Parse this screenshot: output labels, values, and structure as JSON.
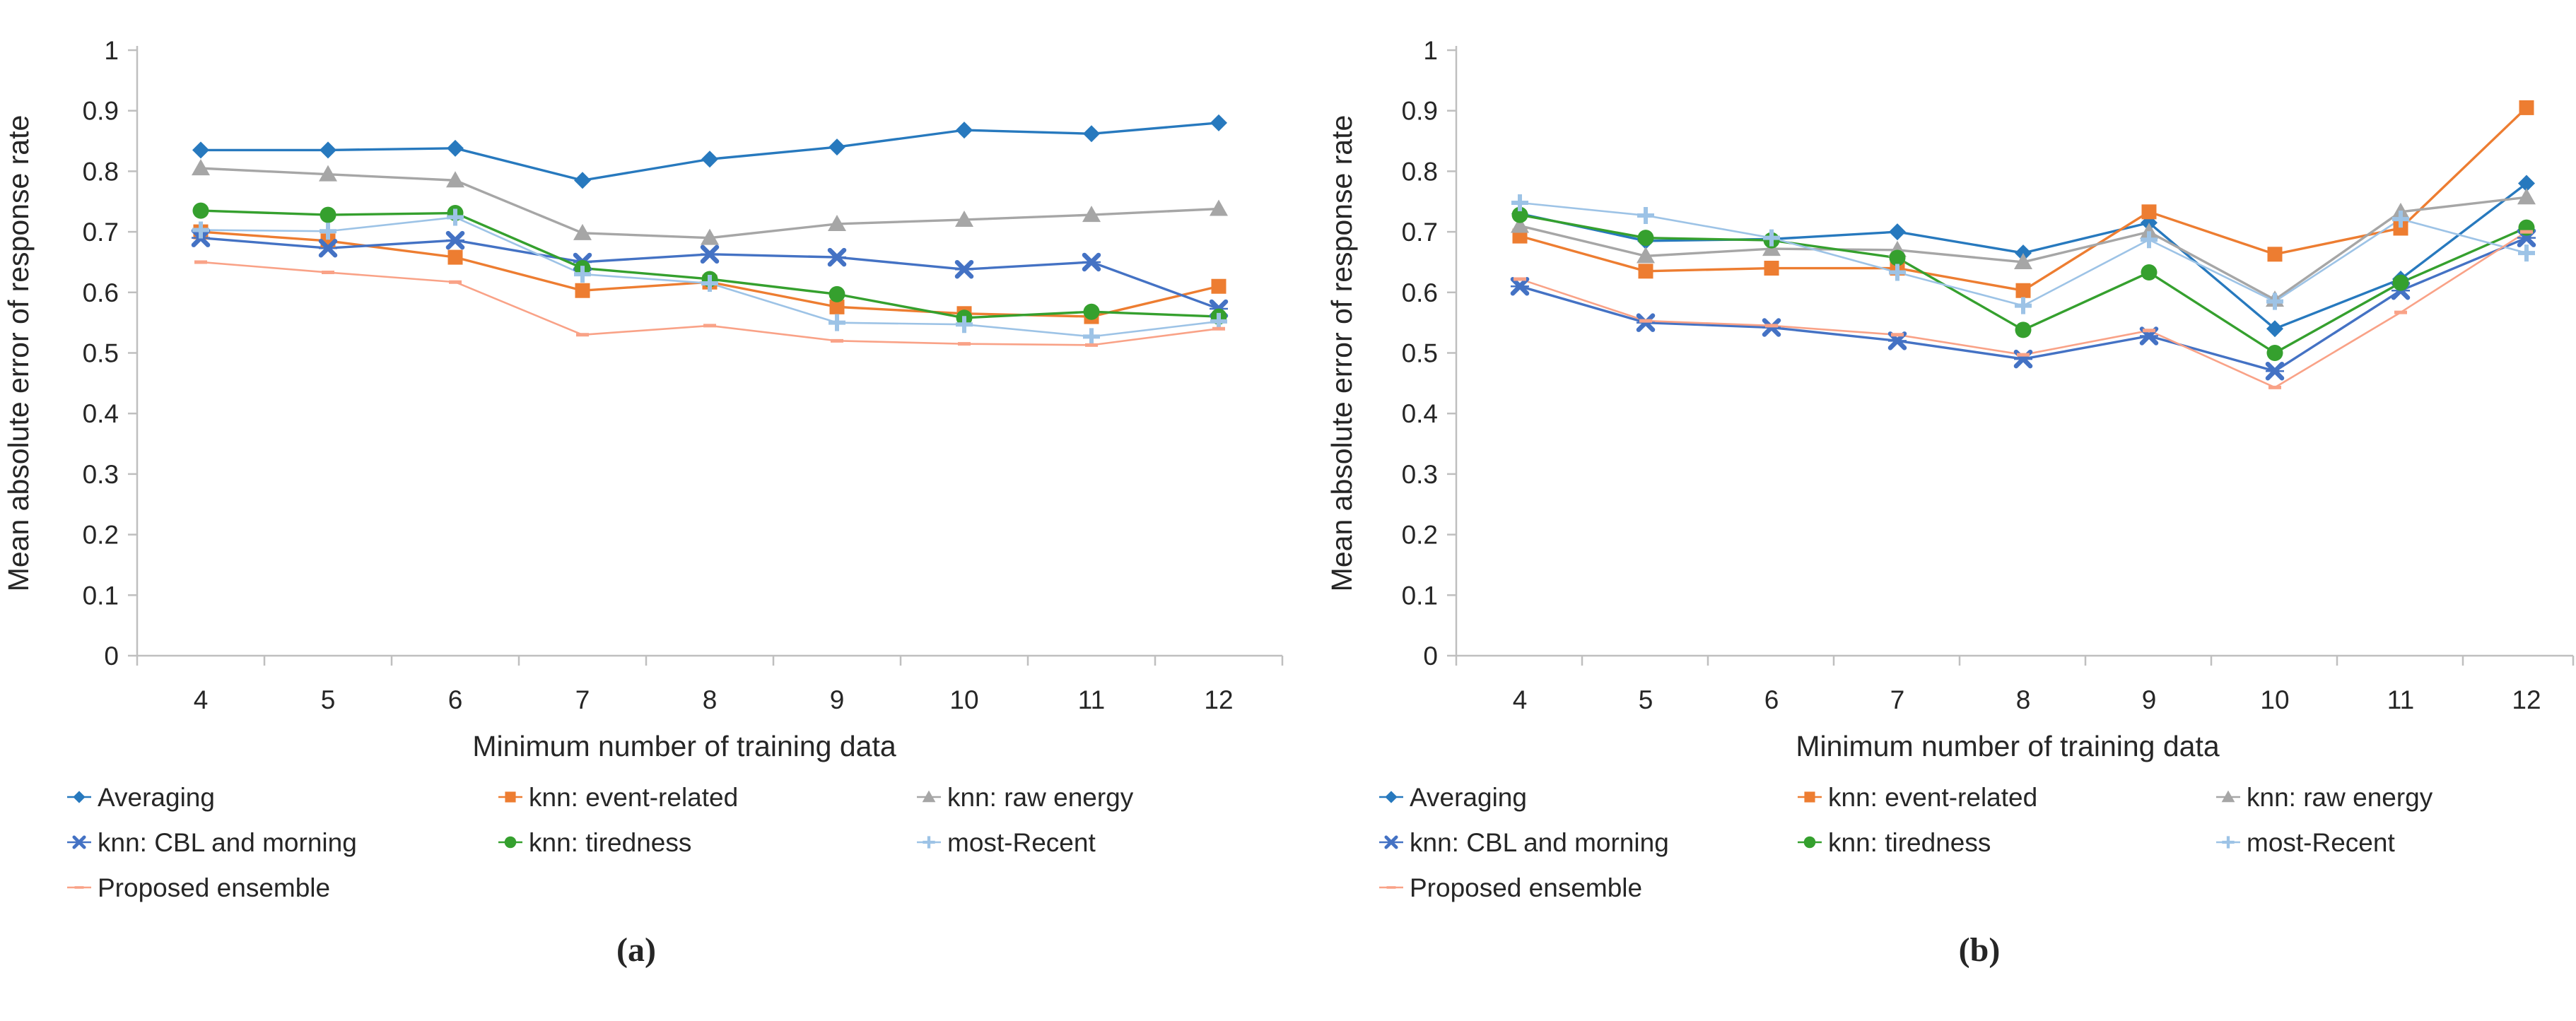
{
  "figure": {
    "y_axis_label": "Mean absolute error of response rate",
    "x_axis_label": "Minimum number of training data",
    "y_tick_labels": [
      "1",
      "0.9",
      "0.8",
      "0.7",
      "0.6",
      "0.5",
      "0.4",
      "0.3",
      "0.2",
      "0.1",
      "0"
    ],
    "x_tick_labels": [
      "4",
      "5",
      "6",
      "7",
      "8",
      "9",
      "10",
      "11",
      "12"
    ],
    "sublabels": [
      "(a)",
      "(b)"
    ],
    "legend_layout": [
      [
        0,
        1,
        2
      ],
      [
        3,
        4,
        5
      ],
      [
        6
      ]
    ],
    "colors": {
      "axis": "#BFBFBF",
      "text": "#262626"
    }
  },
  "chart_data": [
    {
      "type": "line",
      "title": "",
      "xlabel": "Minimum number of training data",
      "ylabel": "Mean absolute error of response rate",
      "x": [
        4,
        5,
        6,
        7,
        8,
        9,
        10,
        11,
        12
      ],
      "ylim": [
        0,
        1
      ],
      "grid": false,
      "legend_position": "bottom",
      "series": [
        {
          "name": "Averaging",
          "color": "#2779BE",
          "marker": "diamond",
          "values": [
            0.835,
            0.835,
            0.838,
            0.785,
            0.82,
            0.84,
            0.868,
            0.862,
            0.88
          ]
        },
        {
          "name": "knn: event-related",
          "color": "#ED7D31",
          "marker": "square",
          "values": [
            0.7,
            0.685,
            0.658,
            0.603,
            0.617,
            0.576,
            0.565,
            0.56,
            0.61
          ]
        },
        {
          "name": "knn: raw energy",
          "color": "#A6A6A6",
          "marker": "triangle",
          "values": [
            0.805,
            0.795,
            0.785,
            0.698,
            0.69,
            0.713,
            0.72,
            0.728,
            0.738
          ]
        },
        {
          "name": "knn: CBL and morning",
          "color": "#4472C4",
          "marker": "xstar",
          "values": [
            0.69,
            0.673,
            0.686,
            0.65,
            0.663,
            0.658,
            0.638,
            0.65,
            0.573
          ]
        },
        {
          "name": "knn: tiredness",
          "color": "#35A02E",
          "marker": "circle",
          "values": [
            0.735,
            0.728,
            0.731,
            0.64,
            0.622,
            0.597,
            0.558,
            0.568,
            0.56
          ]
        },
        {
          "name": "most-Recent",
          "color": "#9DC3E6",
          "marker": "plus",
          "values": [
            0.703,
            0.701,
            0.724,
            0.63,
            0.615,
            0.55,
            0.547,
            0.527,
            0.552
          ]
        },
        {
          "name": "Proposed ensemble",
          "color": "#F9A287",
          "marker": "dash",
          "values": [
            0.65,
            0.633,
            0.617,
            0.53,
            0.545,
            0.52,
            0.515,
            0.513,
            0.54
          ]
        }
      ]
    },
    {
      "type": "line",
      "title": "",
      "xlabel": "Minimum number of training data",
      "ylabel": "Mean absolute error of response rate",
      "x": [
        4,
        5,
        6,
        7,
        8,
        9,
        10,
        11,
        12
      ],
      "ylim": [
        0,
        1
      ],
      "grid": false,
      "legend_position": "bottom",
      "series": [
        {
          "name": "Averaging",
          "color": "#2779BE",
          "marker": "diamond",
          "values": [
            0.73,
            0.685,
            0.688,
            0.7,
            0.665,
            0.715,
            0.54,
            0.622,
            0.78
          ]
        },
        {
          "name": "knn: event-related",
          "color": "#ED7D31",
          "marker": "square",
          "values": [
            0.693,
            0.635,
            0.64,
            0.64,
            0.603,
            0.733,
            0.663,
            0.706,
            0.905
          ]
        },
        {
          "name": "knn: raw energy",
          "color": "#A6A6A6",
          "marker": "triangle",
          "values": [
            0.71,
            0.66,
            0.672,
            0.67,
            0.65,
            0.7,
            0.588,
            0.733,
            0.757
          ]
        },
        {
          "name": "knn: CBL and morning",
          "color": "#4472C4",
          "marker": "xstar",
          "values": [
            0.61,
            0.55,
            0.542,
            0.52,
            0.49,
            0.528,
            0.47,
            0.603,
            0.69
          ]
        },
        {
          "name": "knn: tiredness",
          "color": "#35A02E",
          "marker": "circle",
          "values": [
            0.728,
            0.69,
            0.686,
            0.657,
            0.538,
            0.633,
            0.5,
            0.616,
            0.707
          ]
        },
        {
          "name": "most-Recent",
          "color": "#9DC3E6",
          "marker": "plus",
          "values": [
            0.748,
            0.727,
            0.69,
            0.633,
            0.578,
            0.687,
            0.585,
            0.721,
            0.665
          ]
        },
        {
          "name": "Proposed ensemble",
          "color": "#F9A287",
          "marker": "dash",
          "values": [
            0.622,
            0.553,
            0.545,
            0.53,
            0.497,
            0.537,
            0.443,
            0.567,
            0.7
          ]
        }
      ]
    }
  ]
}
